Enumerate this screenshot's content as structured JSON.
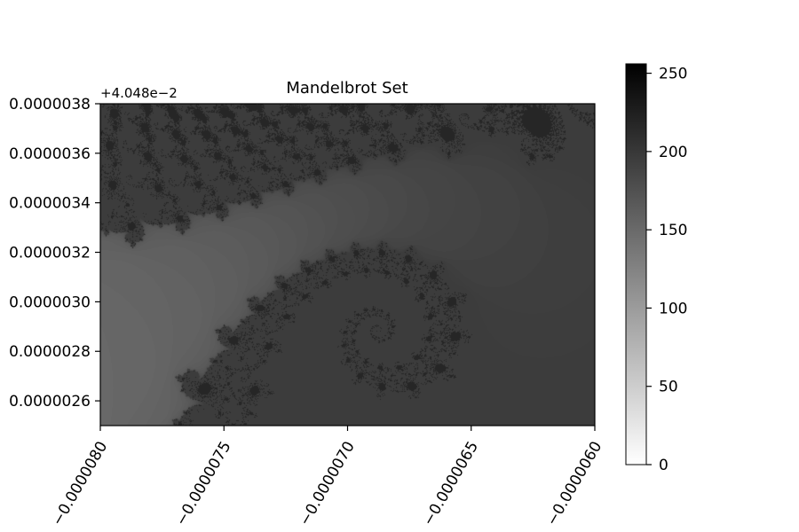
{
  "chart_data": {
    "type": "heatmap",
    "title": "Mandelbrot Set",
    "xlabel": "",
    "ylabel": "",
    "colormap": "gray_r",
    "x_offset_label": "",
    "y_offset_label": "+4.048e−2",
    "xlim": [
      -8e-06,
      -6e-06
    ],
    "ylim": [
      2.5e-06,
      3.8e-06
    ],
    "x_ticks": [
      {
        "value": -8e-06,
        "label": "−0.0000080"
      },
      {
        "value": -7.5e-06,
        "label": "−0.0000075"
      },
      {
        "value": -7e-06,
        "label": "−0.0000070"
      },
      {
        "value": -6.5e-06,
        "label": "−0.0000065"
      },
      {
        "value": -6e-06,
        "label": "−0.0000060"
      }
    ],
    "y_ticks": [
      {
        "value": 2.6e-06,
        "label": "0.0000026"
      },
      {
        "value": 2.8e-06,
        "label": "0.0000028"
      },
      {
        "value": 3e-06,
        "label": "0.0000030"
      },
      {
        "value": 3.2e-06,
        "label": "0.0000032"
      },
      {
        "value": 3.4e-06,
        "label": "0.0000034"
      },
      {
        "value": 3.6e-06,
        "label": "0.0000036"
      },
      {
        "value": 3.8e-06,
        "label": "0.0000038"
      }
    ],
    "colorbar": {
      "range": [
        0,
        256
      ],
      "ticks": [
        {
          "value": 0,
          "label": "0"
        },
        {
          "value": 50,
          "label": "50"
        },
        {
          "value": 100,
          "label": "100"
        },
        {
          "value": 150,
          "label": "150"
        },
        {
          "value": 200,
          "label": "200"
        },
        {
          "value": 250,
          "label": "250"
        }
      ]
    },
    "max_iterations": 256
  },
  "colors": {
    "set_interior": "#262626",
    "axis": "#000000",
    "background": "#ffffff"
  }
}
